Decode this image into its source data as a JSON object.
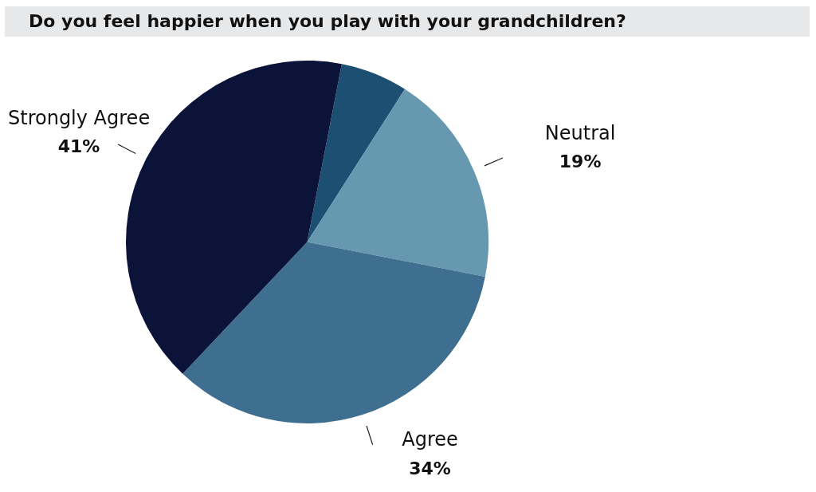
{
  "chart_data": {
    "type": "pie",
    "title": "Do you feel happier when you play with your grandchildren?",
    "categories": [
      null,
      "Neutral",
      "Agree",
      "Strongly Agree"
    ],
    "values": [
      6,
      19,
      34,
      41
    ],
    "value_labels": [
      null,
      "19%",
      "34%",
      "41%"
    ],
    "colors": [
      "#1d4f73",
      "#6699b0",
      "#3e6f90",
      "#0b1339"
    ],
    "legend": false
  }
}
